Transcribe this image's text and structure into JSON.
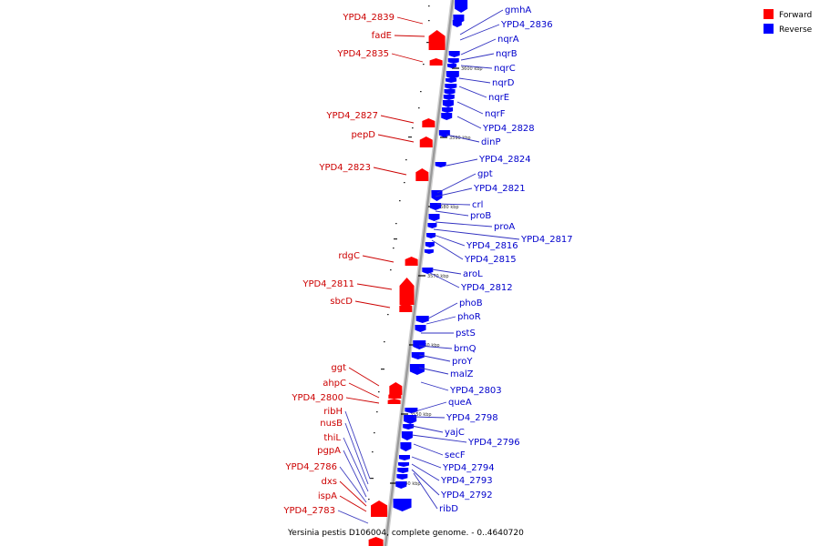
{
  "caption": "Yersinia pestis D106004, complete genome. - 0..4640720",
  "legend": [
    {
      "label": "Forward",
      "color": "#ff0000"
    },
    {
      "label": "Reverse",
      "color": "#0000ff"
    }
  ],
  "colors": {
    "forward": "#ff0000",
    "reverse": "#0000ff",
    "forward_label": "#cc0000",
    "reverse_label": "#0000cc",
    "backbone": "#999999"
  },
  "ticks": [
    "3600 kbp",
    "3590 kbp",
    "3580 kbp",
    "3570 kbp",
    "3560 kbp",
    "3550 kbp",
    "3540 kbp"
  ],
  "forward_genes": [
    "YPD4_2839",
    "fadE",
    "YPD4_2835",
    "YPD4_2827",
    "pepD",
    "YPD4_2823",
    "rdgC",
    "YPD4_2811",
    "sbcD",
    "ggt",
    "ahpC",
    "YPD4_2800",
    "ribH",
    "nusB",
    "thiL",
    "pgpA",
    "YPD4_2786",
    "dxs",
    "ispA",
    "YPD4_2783"
  ],
  "reverse_genes": [
    "gmhA",
    "YPD4_2836",
    "nqrA",
    "nqrB",
    "nqrC",
    "nqrD",
    "nqrE",
    "nqrF",
    "YPD4_2828",
    "dinP",
    "YPD4_2824",
    "gpt",
    "YPD4_2821",
    "crl",
    "proB",
    "proA",
    "YPD4_2817",
    "YPD4_2816",
    "YPD4_2815",
    "aroL",
    "YPD4_2812",
    "phoB",
    "phoR",
    "pstS",
    "brnQ",
    "proY",
    "malZ",
    "YPD4_2803",
    "queA",
    "YPD4_2798",
    "yajC",
    "YPD4_2796",
    "secF",
    "YPD4_2794",
    "YPD4_2793",
    "YPD4_2792",
    "ribD"
  ]
}
